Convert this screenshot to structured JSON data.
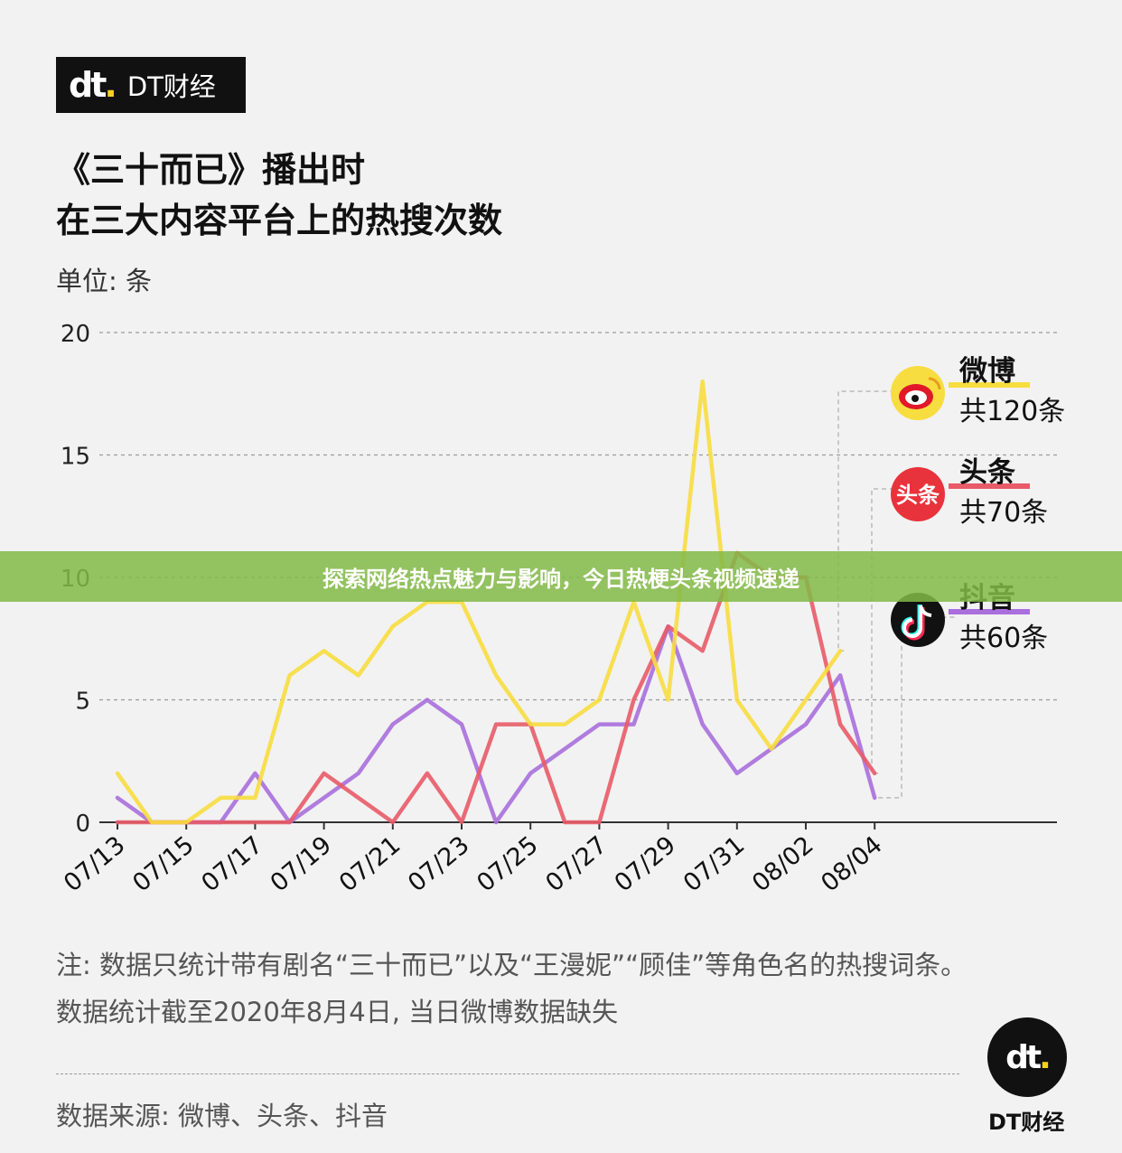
{
  "brand": {
    "mark": "dt",
    "name": "DT财经"
  },
  "title_line1": "《三十而已》播出时",
  "title_line2": "在三大内容平台上的热搜次数",
  "unit": "单位: 条",
  "chart_data": {
    "type": "line",
    "title": "《三十而已》播出时在三大内容平台上的热搜次数",
    "ylabel": "单位: 条",
    "ylim": [
      0,
      20
    ],
    "yticks": [
      "0",
      "5",
      "10",
      "15",
      "20"
    ],
    "grid": true,
    "categories": [
      "07/13",
      "07/14",
      "07/15",
      "07/16",
      "07/17",
      "07/18",
      "07/19",
      "07/20",
      "07/21",
      "07/22",
      "07/23",
      "07/24",
      "07/25",
      "07/26",
      "07/27",
      "07/28",
      "07/29",
      "07/30",
      "07/31",
      "08/01",
      "08/02",
      "08/03",
      "08/04"
    ],
    "xticks": [
      "07/13",
      "07/15",
      "07/17",
      "07/19",
      "07/21",
      "07/23",
      "07/25",
      "07/27",
      "07/29",
      "07/31",
      "08/02",
      "08/04"
    ],
    "series": [
      {
        "name": "微博",
        "total": "共120条",
        "color": "#f7dd3f",
        "values": [
          2,
          0,
          0,
          1,
          1,
          6,
          7,
          6,
          8,
          9,
          9,
          6,
          4,
          4,
          5,
          9,
          5,
          18,
          5,
          3,
          5,
          7,
          null
        ]
      },
      {
        "name": "头条",
        "total": "共70条",
        "color": "#e85b68",
        "values": [
          0,
          0,
          0,
          0,
          0,
          0,
          2,
          1,
          0,
          2,
          0,
          4,
          4,
          0,
          0,
          5,
          8,
          7,
          11,
          10,
          10,
          4,
          2
        ]
      },
      {
        "name": "抖音",
        "total": "共60条",
        "color": "#a96fdc",
        "values": [
          1,
          0,
          0,
          0,
          2,
          0,
          1,
          2,
          4,
          5,
          4,
          0,
          2,
          3,
          4,
          4,
          8,
          4,
          2,
          3,
          4,
          6,
          1
        ]
      }
    ]
  },
  "legend_icons": {
    "weibo": "weibo-logo-icon",
    "toutiao": "头条",
    "douyin": "douyin-logo-icon"
  },
  "note_line1": "注: 数据只统计带有剧名“三十而已”以及“王漫妮”“顾佳”等角色名的热搜词条。",
  "note_line2": "数据统计截至2020年8月4日, 当日微博数据缺失",
  "source": "数据来源: 微博、头条、抖音",
  "footer_logo": {
    "mark": "dt",
    "name": "DT财经"
  },
  "banner": "探索网络热点魅力与影响，今日热梗头条视频速递"
}
